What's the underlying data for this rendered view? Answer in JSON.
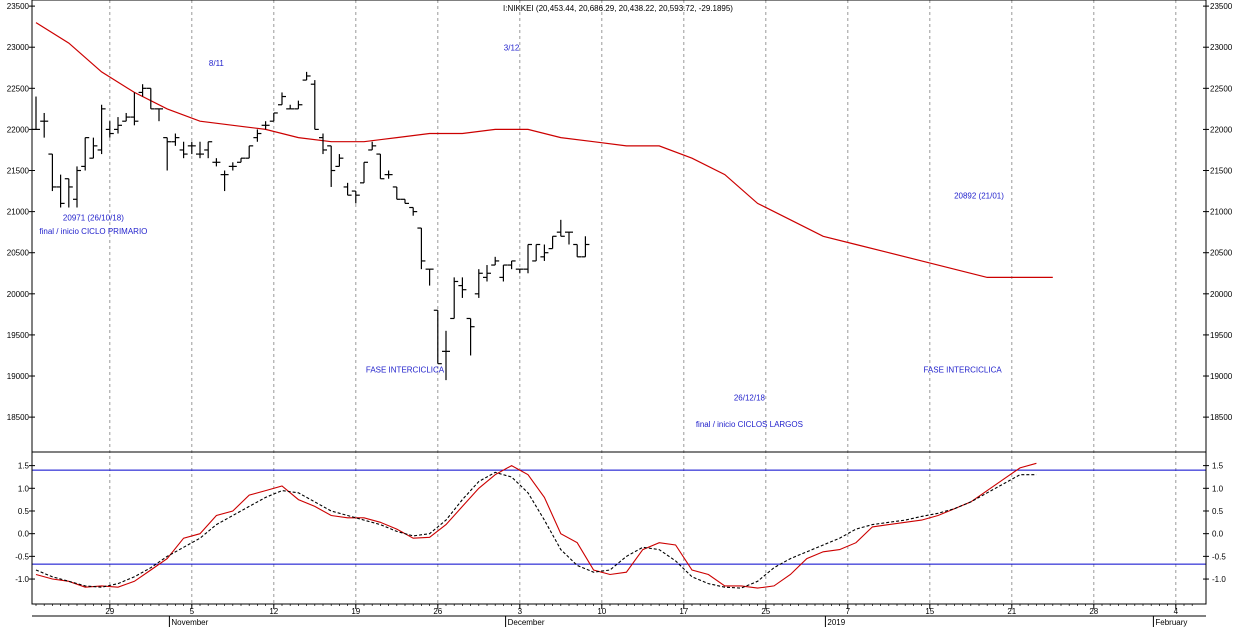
{
  "chart_data": [
    {
      "type": "ohlc",
      "title": "I:NIKKEI (20,453.44, 20,686.29, 20,438.22, 20,593.72, -29.1895)",
      "ylim": [
        18100,
        23550
      ],
      "y_ticks": [
        18500,
        19000,
        19500,
        20000,
        20500,
        21000,
        21500,
        22000,
        22500,
        23000,
        23500
      ],
      "x_ticks": [
        {
          "label": "29",
          "slot": 9
        },
        {
          "label": "5",
          "slot": 19
        },
        {
          "label": "12",
          "slot": 29
        },
        {
          "label": "19",
          "slot": 39
        },
        {
          "label": "26",
          "slot": 49
        },
        {
          "label": "3",
          "slot": 59
        },
        {
          "label": "10",
          "slot": 69
        },
        {
          "label": "17",
          "slot": 79
        },
        {
          "label": "25",
          "slot": 89
        },
        {
          "label": "7",
          "slot": 99
        },
        {
          "label": "15",
          "slot": 109
        },
        {
          "label": "21",
          "slot": 119
        },
        {
          "label": "28",
          "slot": 129
        },
        {
          "label": "4",
          "slot": 139
        }
      ],
      "month_labels": [
        {
          "label": "November",
          "slot": 17
        },
        {
          "label": "December",
          "slot": 58
        },
        {
          "label": "2019",
          "slot": 97
        },
        {
          "label": "February",
          "slot": 137
        }
      ],
      "bars": [
        {
          "o": 22000,
          "h": 22400,
          "l": 22000,
          "c": 22000
        },
        {
          "o": 22100,
          "h": 22200,
          "l": 21900,
          "c": 22100
        },
        {
          "o": 21700,
          "h": 21700,
          "l": 21250,
          "c": 21300
        },
        {
          "o": 21300,
          "h": 21450,
          "l": 21050,
          "c": 21100
        },
        {
          "o": 21400,
          "h": 21400,
          "l": 21050,
          "c": 21300
        },
        {
          "o": 21150,
          "h": 21550,
          "l": 21050,
          "c": 21500
        },
        {
          "o": 21550,
          "h": 21900,
          "l": 21500,
          "c": 21900
        },
        {
          "o": 21650,
          "h": 21900,
          "l": 21650,
          "c": 21800
        },
        {
          "o": 21750,
          "h": 22300,
          "l": 21700,
          "c": 22250
        },
        {
          "o": 22000,
          "h": 22100,
          "l": 21900,
          "c": 21950
        },
        {
          "o": 22000,
          "h": 22150,
          "l": 21950,
          "c": 22050
        },
        {
          "o": 22100,
          "h": 22200,
          "l": 22100,
          "c": 22150
        },
        {
          "o": 22150,
          "h": 22450,
          "l": 22050,
          "c": 22100
        },
        {
          "o": 22450,
          "h": 22550,
          "l": 22400,
          "c": 22500
        },
        {
          "o": 22500,
          "h": 22500,
          "l": 22250,
          "c": 22250
        },
        {
          "o": 22250,
          "h": 22250,
          "l": 22100,
          "c": 22250
        },
        {
          "o": 21900,
          "h": 21900,
          "l": 21500,
          "c": 21850
        },
        {
          "o": 21850,
          "h": 21950,
          "l": 21800,
          "c": 21900
        },
        {
          "o": 21750,
          "h": 21850,
          "l": 21650,
          "c": 21700
        },
        {
          "o": 21800,
          "h": 21850,
          "l": 21700,
          "c": 21800
        },
        {
          "o": 21700,
          "h": 21850,
          "l": 21650,
          "c": 21700
        },
        {
          "o": 21750,
          "h": 21850,
          "l": 21650,
          "c": 21850
        },
        {
          "o": 21600,
          "h": 21650,
          "l": 21550,
          "c": 21600
        },
        {
          "o": 21450,
          "h": 21500,
          "l": 21250,
          "c": 21450
        },
        {
          "o": 21550,
          "h": 21600,
          "l": 21500,
          "c": 21550
        },
        {
          "o": 21600,
          "h": 21650,
          "l": 21600,
          "c": 21650
        },
        {
          "o": 21650,
          "h": 21800,
          "l": 21650,
          "c": 21800
        },
        {
          "o": 21900,
          "h": 22000,
          "l": 21850,
          "c": 21950
        },
        {
          "o": 22050,
          "h": 22100,
          "l": 22000,
          "c": 22050
        },
        {
          "o": 22100,
          "h": 22200,
          "l": 22100,
          "c": 22200
        },
        {
          "o": 22300,
          "h": 22450,
          "l": 22300,
          "c": 22400
        },
        {
          "o": 22250,
          "h": 22300,
          "l": 22250,
          "c": 22250
        },
        {
          "o": 22250,
          "h": 22350,
          "l": 22250,
          "c": 22300
        },
        {
          "o": 22600,
          "h": 22700,
          "l": 22600,
          "c": 22650
        },
        {
          "o": 22550,
          "h": 22600,
          "l": 22000,
          "c": 22000
        },
        {
          "o": 21900,
          "h": 21950,
          "l": 21700,
          "c": 21750
        },
        {
          "o": 21800,
          "h": 21800,
          "l": 21300,
          "c": 21500
        },
        {
          "o": 21550,
          "h": 21700,
          "l": 21550,
          "c": 21650
        },
        {
          "o": 21300,
          "h": 21350,
          "l": 21200,
          "c": 21200
        },
        {
          "o": 21250,
          "h": 21250,
          "l": 21100,
          "c": 21200
        },
        {
          "o": 21350,
          "h": 21600,
          "l": 21350,
          "c": 21600
        },
        {
          "o": 21750,
          "h": 21850,
          "l": 21750,
          "c": 21800
        },
        {
          "o": 21700,
          "h": 21700,
          "l": 21400,
          "c": 21400
        },
        {
          "o": 21450,
          "h": 21500,
          "l": 21400,
          "c": 21450
        },
        {
          "o": 21300,
          "h": 21300,
          "l": 21150,
          "c": 21150
        },
        {
          "o": 21150,
          "h": 21150,
          "l": 21100,
          "c": 21100
        },
        {
          "o": 21050,
          "h": 21050,
          "l": 20950,
          "c": 21000
        },
        {
          "o": 20800,
          "h": 20800,
          "l": 20300,
          "c": 20400
        },
        {
          "o": 20300,
          "h": 20300,
          "l": 20100,
          "c": 20300
        },
        {
          "o": 19800,
          "h": 19800,
          "l": 19150,
          "c": 19150
        },
        {
          "o": 19300,
          "h": 19550,
          "l": 18950,
          "c": 19300
        },
        {
          "o": 19700,
          "h": 20200,
          "l": 19700,
          "c": 20150
        },
        {
          "o": 20100,
          "h": 20200,
          "l": 19950,
          "c": 20050
        },
        {
          "o": 19700,
          "h": 19700,
          "l": 19250,
          "c": 19600
        },
        {
          "o": 20000,
          "h": 20300,
          "l": 19950,
          "c": 20250
        },
        {
          "o": 20200,
          "h": 20350,
          "l": 20150,
          "c": 20250
        },
        {
          "o": 20350,
          "h": 20450,
          "l": 20350,
          "c": 20400
        },
        {
          "o": 20200,
          "h": 20350,
          "l": 20150,
          "c": 20350
        },
        {
          "o": 20350,
          "h": 20400,
          "l": 20300,
          "c": 20400
        },
        {
          "o": 20300,
          "h": 20300,
          "l": 20250,
          "c": 20300
        },
        {
          "o": 20300,
          "h": 20600,
          "l": 20250,
          "c": 20600
        },
        {
          "o": 20400,
          "h": 20600,
          "l": 20400,
          "c": 20600
        },
        {
          "o": 20450,
          "h": 20600,
          "l": 20400,
          "c": 20500
        },
        {
          "o": 20550,
          "h": 20700,
          "l": 20550,
          "c": 20700
        },
        {
          "o": 20750,
          "h": 20900,
          "l": 20700,
          "c": 20700
        },
        {
          "o": 20750,
          "h": 20750,
          "l": 20600,
          "c": 20750
        },
        {
          "o": 20600,
          "h": 20600,
          "l": 20450,
          "c": 20450
        },
        {
          "o": 20450,
          "h": 20700,
          "l": 20450,
          "c": 20600
        }
      ],
      "ma": {
        "color": "#cc0000",
        "x": [
          0,
          4,
          8,
          12,
          16,
          20,
          24,
          28,
          32,
          36,
          40,
          44,
          48,
          52,
          56,
          60,
          64,
          68,
          72,
          76,
          80,
          84,
          88,
          92,
          96,
          100,
          104,
          108,
          112,
          116,
          120,
          124
        ],
        "y": [
          23300,
          23050,
          22700,
          22450,
          22250,
          22100,
          22050,
          22000,
          21900,
          21850,
          21850,
          21900,
          21950,
          21950,
          22000,
          22000,
          21900,
          21850,
          21800,
          21800,
          21650,
          21450,
          21100,
          20900,
          20700,
          20600,
          20500,
          20400,
          20300,
          20200,
          20200,
          20200
        ]
      },
      "annotations": [
        {
          "text": "20971 (26/10/18)",
          "slot": 7,
          "y": 20890
        },
        {
          "text": "final / inicio CICLO PRIMARIO",
          "slot": 7,
          "y": 20730
        },
        {
          "text": "8/11",
          "slot": 22,
          "y": 22770
        },
        {
          "text": "3/12",
          "slot": 58,
          "y": 22960
        },
        {
          "text": "FASE INTERCICLICA",
          "slot": 45,
          "y": 19040
        },
        {
          "text": "26/12/18",
          "slot": 87,
          "y": 18700
        },
        {
          "text": "final / inicio CICLOS LARGOS",
          "slot": 87,
          "y": 18380
        },
        {
          "text": "20892 (21/01)",
          "slot": 115,
          "y": 21160
        },
        {
          "text": "FASE INTERCICLICA",
          "slot": 113,
          "y": 19040
        }
      ]
    },
    {
      "type": "line",
      "ylim": [
        -1.55,
        1.8
      ],
      "y_ticks": [
        -1.0,
        -0.5,
        0.0,
        0.5,
        1.0,
        1.5
      ],
      "levels": [
        1.4,
        -0.67
      ],
      "level_color": "#0000cc",
      "series": [
        {
          "style": "solid",
          "color": "#cc0000",
          "x": [
            0,
            2,
            4,
            6,
            8,
            10,
            12,
            14,
            16,
            18,
            20,
            22,
            24,
            26,
            28,
            30,
            32,
            34,
            36,
            38,
            40,
            42,
            44,
            46,
            48,
            50,
            52,
            54,
            56,
            58,
            60,
            62,
            64,
            66,
            68,
            70,
            72,
            74,
            76,
            78,
            80,
            82,
            84,
            86,
            88,
            90,
            92,
            94,
            96,
            98,
            100,
            102,
            104,
            106,
            108,
            110,
            112,
            114,
            116,
            118,
            120,
            122,
            124,
            126,
            128
          ],
          "y": [
            -0.9,
            -1.0,
            -1.05,
            -1.18,
            -1.15,
            -1.18,
            -1.05,
            -0.8,
            -0.55,
            -0.1,
            0.0,
            0.4,
            0.5,
            0.85,
            0.95,
            1.05,
            0.75,
            0.6,
            0.4,
            0.35,
            0.35,
            0.25,
            0.1,
            -0.1,
            -0.08,
            0.2,
            0.6,
            1.0,
            1.3,
            1.5,
            1.3,
            0.8,
            0.0,
            -0.2,
            -0.8,
            -0.9,
            -0.85,
            -0.35,
            -0.2,
            -0.25,
            -0.8,
            -0.9,
            -1.15,
            -1.15,
            -1.2,
            -1.15,
            -0.9,
            -0.55,
            -0.4,
            -0.35,
            -0.2,
            0.15,
            0.2,
            0.25,
            0.3,
            0.4,
            0.55,
            0.7,
            0.95,
            1.2,
            1.45,
            1.55,
            null,
            null,
            null
          ]
        },
        {
          "style": "dashed",
          "color": "#000000",
          "x": [
            0,
            2,
            4,
            6,
            8,
            10,
            12,
            14,
            16,
            18,
            20,
            22,
            24,
            26,
            28,
            30,
            32,
            34,
            36,
            38,
            40,
            42,
            44,
            46,
            48,
            50,
            52,
            54,
            56,
            58,
            60,
            62,
            64,
            66,
            68,
            70,
            72,
            74,
            76,
            78,
            80,
            82,
            84,
            86,
            88,
            90,
            92,
            94,
            96,
            98,
            100,
            102,
            104,
            106,
            108,
            110,
            112,
            114,
            116,
            118,
            120,
            122
          ],
          "y": [
            -0.8,
            -0.95,
            -1.05,
            -1.15,
            -1.18,
            -1.1,
            -0.95,
            -0.75,
            -0.5,
            -0.3,
            -0.1,
            0.2,
            0.4,
            0.6,
            0.8,
            0.95,
            0.9,
            0.7,
            0.5,
            0.4,
            0.3,
            0.2,
            0.05,
            -0.05,
            0.0,
            0.3,
            0.75,
            1.15,
            1.35,
            1.25,
            0.9,
            0.3,
            -0.35,
            -0.7,
            -0.85,
            -0.8,
            -0.5,
            -0.3,
            -0.35,
            -0.6,
            -0.95,
            -1.1,
            -1.18,
            -1.2,
            -1.05,
            -0.75,
            -0.55,
            -0.4,
            -0.25,
            -0.1,
            0.1,
            0.2,
            0.25,
            0.3,
            0.38,
            0.45,
            0.55,
            0.7,
            0.9,
            1.1,
            1.3,
            1.3
          ]
        }
      ]
    }
  ]
}
